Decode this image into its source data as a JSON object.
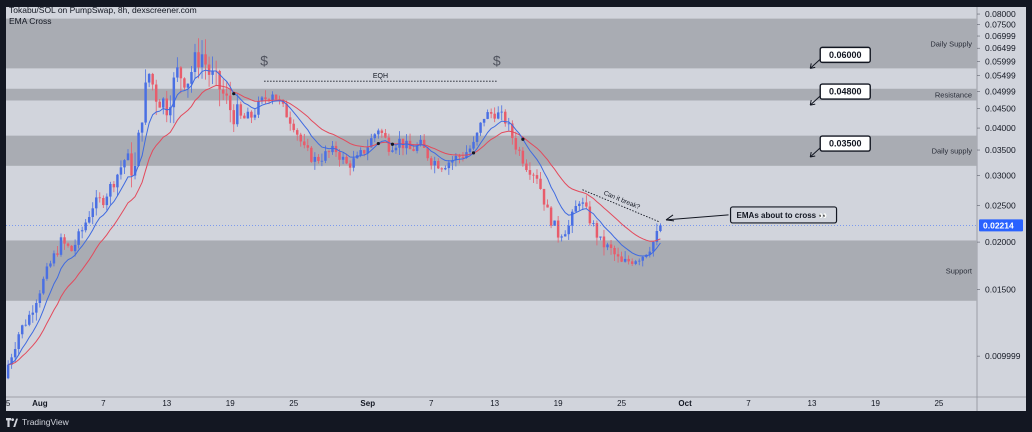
{
  "header": {
    "title": "Tokabu/SOL on PumpSwap, 8h, dexscreener.com",
    "indicator": "EMA Cross"
  },
  "footer": {
    "brand": "TradingView"
  },
  "colors": {
    "up": "#4a6fe3",
    "down": "#e85c6b",
    "ema_fast": "#3f6ae0",
    "ema_slow": "#e34a5c",
    "zone": "#a9acb3",
    "background": "#d1d4dc",
    "price_tag": "#2962ff"
  },
  "chart_data": {
    "type": "candlestick",
    "pair": "Tokabu/SOL",
    "timeframe": "8h",
    "y_axis": {
      "scale": "log",
      "ticks": [
        "0.08000",
        "0.07500",
        "0.06999",
        "0.06499",
        "0.05999",
        "0.05499",
        "0.04999",
        "0.04500",
        "0.04000",
        "0.03500",
        "0.03000",
        "0.02500",
        "0.02000",
        "0.01500",
        "0.009999"
      ],
      "tick_values": [
        0.08,
        0.075,
        0.06999,
        0.06499,
        0.05999,
        0.05499,
        0.04999,
        0.045,
        0.04,
        0.035,
        0.03,
        0.025,
        0.02,
        0.015,
        0.009999
      ],
      "range": [
        0.0078,
        0.0835
      ]
    },
    "x_axis": {
      "start_day": "Aug 1",
      "ticks": [
        {
          "label": "5",
          "day": -2
        },
        {
          "label": "Aug",
          "day": 1
        },
        {
          "label": "7",
          "day": 7
        },
        {
          "label": "13",
          "day": 13
        },
        {
          "label": "19",
          "day": 19
        },
        {
          "label": "25",
          "day": 25
        },
        {
          "label": "Sep",
          "day": 32
        },
        {
          "label": "7",
          "day": 38
        },
        {
          "label": "13",
          "day": 44
        },
        {
          "label": "19",
          "day": 50
        },
        {
          "label": "25",
          "day": 56
        },
        {
          "label": "Oct",
          "day": 62
        },
        {
          "label": "7",
          "day": 68
        },
        {
          "label": "13",
          "day": 74
        },
        {
          "label": "19",
          "day": 80
        },
        {
          "label": "25",
          "day": 86
        }
      ],
      "range": [
        -2.2,
        89.6
      ]
    },
    "ohlc_anchors": [
      {
        "day": -2.0,
        "close": 0.0095
      },
      {
        "day": -1.0,
        "close": 0.0115
      },
      {
        "day": 0.0,
        "close": 0.0128
      },
      {
        "day": 1.0,
        "close": 0.015
      },
      {
        "day": 2.0,
        "close": 0.0175
      },
      {
        "day": 3.0,
        "close": 0.02
      },
      {
        "day": 4.0,
        "close": 0.019
      },
      {
        "day": 5.0,
        "close": 0.0215
      },
      {
        "day": 6.0,
        "close": 0.025
      },
      {
        "day": 7.0,
        "close": 0.026
      },
      {
        "day": 8.0,
        "close": 0.029
      },
      {
        "day": 9.0,
        "close": 0.033
      },
      {
        "day": 10.0,
        "close": 0.031
      },
      {
        "day": 10.7,
        "close": 0.045
      },
      {
        "day": 11.3,
        "close": 0.056
      },
      {
        "day": 12.0,
        "close": 0.049
      },
      {
        "day": 13.0,
        "close": 0.046
      },
      {
        "day": 14.0,
        "close": 0.056
      },
      {
        "day": 15.0,
        "close": 0.054
      },
      {
        "day": 15.7,
        "close": 0.06
      },
      {
        "day": 16.3,
        "close": 0.063
      },
      {
        "day": 17.0,
        "close": 0.056
      },
      {
        "day": 18.0,
        "close": 0.051
      },
      {
        "day": 19.0,
        "close": 0.045
      },
      {
        "day": 20.0,
        "close": 0.042
      },
      {
        "day": 21.0,
        "close": 0.043
      },
      {
        "day": 22.0,
        "close": 0.047
      },
      {
        "day": 23.0,
        "close": 0.05
      },
      {
        "day": 24.0,
        "close": 0.045
      },
      {
        "day": 25.0,
        "close": 0.041
      },
      {
        "day": 26.0,
        "close": 0.035
      },
      {
        "day": 27.0,
        "close": 0.033
      },
      {
        "day": 28.0,
        "close": 0.034
      },
      {
        "day": 29.0,
        "close": 0.035
      },
      {
        "day": 30.0,
        "close": 0.032
      },
      {
        "day": 31.0,
        "close": 0.033
      },
      {
        "day": 32.0,
        "close": 0.036
      },
      {
        "day": 33.0,
        "close": 0.04
      },
      {
        "day": 34.0,
        "close": 0.036
      },
      {
        "day": 35.0,
        "close": 0.037
      },
      {
        "day": 36.0,
        "close": 0.035
      },
      {
        "day": 37.0,
        "close": 0.036
      },
      {
        "day": 38.0,
        "close": 0.033
      },
      {
        "day": 39.0,
        "close": 0.032
      },
      {
        "day": 40.0,
        "close": 0.033
      },
      {
        "day": 41.0,
        "close": 0.034
      },
      {
        "day": 42.0,
        "close": 0.036
      },
      {
        "day": 43.0,
        "close": 0.043
      },
      {
        "day": 44.0,
        "close": 0.044
      },
      {
        "day": 45.0,
        "close": 0.042
      },
      {
        "day": 46.0,
        "close": 0.036
      },
      {
        "day": 47.0,
        "close": 0.032
      },
      {
        "day": 48.0,
        "close": 0.03
      },
      {
        "day": 49.0,
        "close": 0.024
      },
      {
        "day": 50.0,
        "close": 0.021
      },
      {
        "day": 51.0,
        "close": 0.022
      },
      {
        "day": 52.0,
        "close": 0.026
      },
      {
        "day": 53.0,
        "close": 0.023
      },
      {
        "day": 54.0,
        "close": 0.02
      },
      {
        "day": 55.0,
        "close": 0.019
      },
      {
        "day": 56.0,
        "close": 0.0175
      },
      {
        "day": 57.0,
        "close": 0.018
      },
      {
        "day": 58.0,
        "close": 0.0185
      },
      {
        "day": 59.0,
        "close": 0.02
      },
      {
        "day": 59.8,
        "close": 0.0221
      }
    ],
    "zones": [
      {
        "name": "Daily Supply",
        "low": 0.0575,
        "high": 0.0778
      },
      {
        "name": "Resistance",
        "low": 0.0473,
        "high": 0.0508
      },
      {
        "name": "Daily supply",
        "low": 0.0318,
        "high": 0.0382
      },
      {
        "name": "Support",
        "low": 0.014,
        "high": 0.0202
      }
    ],
    "level_labels": [
      {
        "text": "0.06000",
        "value": 0.06,
        "arrow_day": 74.4
      },
      {
        "text": "0.04800",
        "value": 0.048,
        "arrow_day": 74.4
      },
      {
        "text": "0.03500",
        "value": 0.035,
        "arrow_day": 74.4
      }
    ],
    "annotations": {
      "eqh": {
        "text": "EQH",
        "value": 0.0532,
        "day_from": 22.2,
        "day_to": 44.2
      },
      "dollar_marks": [
        {
          "text": "$",
          "day": 22.2,
          "value": 0.0585
        },
        {
          "text": "$",
          "day": 44.2,
          "value": 0.0585
        }
      ],
      "can_it_break": {
        "text": "Can it break?",
        "from": {
          "day": 52.3,
          "value": 0.0275
        },
        "to": {
          "day": 59.6,
          "value": 0.0226
        }
      },
      "callout": {
        "text": "EMAs about to cross",
        "badge": "👀",
        "value": 0.0222,
        "day": 66.3
      }
    },
    "last_price": {
      "value": 0.02214,
      "label": "0.02214"
    }
  }
}
